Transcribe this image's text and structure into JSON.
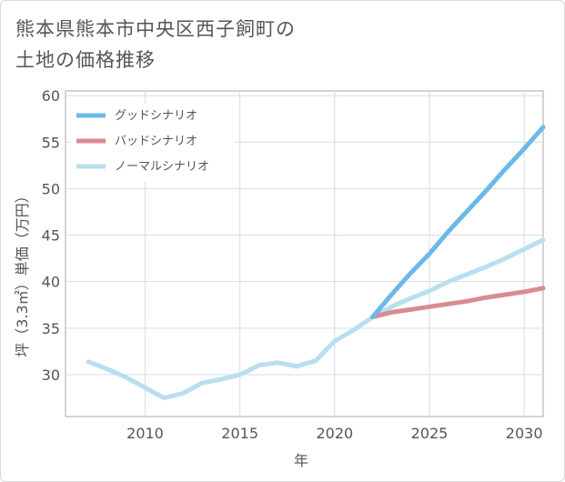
{
  "title_line1": "熊本県熊本市中央区西子飼町の",
  "title_line2": "土地の価格推移",
  "chart_data": {
    "type": "line",
    "xlabel": "年",
    "ylabel": "坪（3.3㎡）単価（万円）",
    "xlim": [
      2005.8,
      2031
    ],
    "ylim": [
      25.5,
      60.5
    ],
    "xticks": [
      2010,
      2015,
      2020,
      2025,
      2030
    ],
    "yticks": [
      30,
      35,
      40,
      45,
      50,
      55,
      60
    ],
    "grid": true,
    "legend_position": "top-left",
    "series": [
      {
        "name": "グッドシナリオ",
        "color": "#6cb9e9",
        "x": [
          2022,
          2023,
          2024,
          2025,
          2026,
          2027,
          2028,
          2029,
          2030,
          2031
        ],
        "y": [
          36.2,
          38.6,
          40.9,
          43.0,
          45.4,
          47.6,
          49.8,
          52.1,
          54.3,
          56.6
        ]
      },
      {
        "name": "バッドシナリオ",
        "color": "#da8a91",
        "x": [
          2022,
          2023,
          2024,
          2025,
          2026,
          2027,
          2028,
          2029,
          2030,
          2031
        ],
        "y": [
          36.2,
          36.7,
          37.0,
          37.3,
          37.6,
          37.9,
          38.3,
          38.6,
          38.9,
          39.3
        ]
      },
      {
        "name": "ノーマルシナリオ",
        "color": "#b9dfee",
        "x": [
          2007,
          2008,
          2009,
          2010,
          2011,
          2012,
          2013,
          2014,
          2015,
          2016,
          2017,
          2018,
          2019,
          2020,
          2021,
          2022,
          2023,
          2024,
          2025,
          2026,
          2027,
          2028,
          2029,
          2030,
          2031
        ],
        "y": [
          31.4,
          30.6,
          29.7,
          28.6,
          27.5,
          28.0,
          29.1,
          29.5,
          30.0,
          31.0,
          31.3,
          30.9,
          31.5,
          33.6,
          34.8,
          36.2,
          37.3,
          38.2,
          39.0,
          40.0,
          40.8,
          41.6,
          42.5,
          43.5,
          44.5
        ]
      }
    ]
  }
}
